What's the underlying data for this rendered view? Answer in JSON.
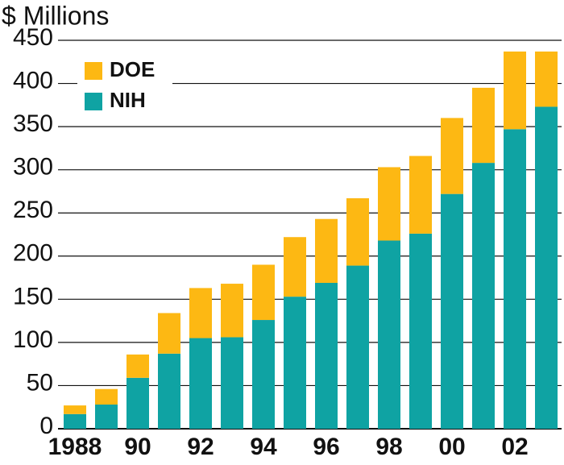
{
  "chart_data": {
    "type": "stacked-bar",
    "title": "$ Millions",
    "categories": [
      "1988",
      null,
      "90",
      null,
      "92",
      null,
      "94",
      null,
      "96",
      null,
      "98",
      null,
      "00",
      null,
      "02",
      null
    ],
    "series": [
      {
        "name": "DOE",
        "color": "#fdb813",
        "values": [
          10,
          18,
          27,
          47,
          58,
          62,
          64,
          69,
          74,
          78,
          85,
          90,
          88,
          87,
          90,
          64
        ]
      },
      {
        "name": "NIH",
        "color": "#0fa3a3",
        "values": [
          17,
          28,
          59,
          87,
          105,
          106,
          126,
          153,
          169,
          189,
          218,
          226,
          272,
          308,
          347,
          373
        ]
      }
    ],
    "ylim": [
      0,
      450
    ],
    "yticks": [
      0,
      50,
      100,
      150,
      200,
      250,
      300,
      350,
      400,
      450
    ],
    "grid": true,
    "legend": "top-left"
  }
}
